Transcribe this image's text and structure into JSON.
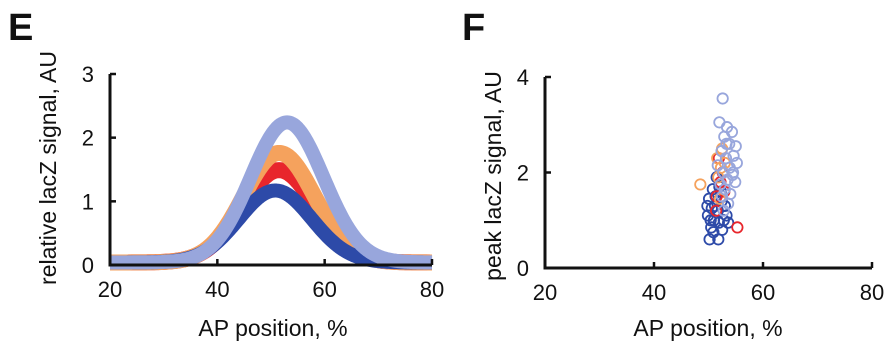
{
  "colors": {
    "red": "#e8262c",
    "orange": "#f5a25d",
    "light_blue": "#98a6dc",
    "dark_blue": "#2d4aa8",
    "axis": "#111111"
  },
  "chart_data": [
    {
      "panel": "E",
      "type": "line",
      "xlabel": "AP position, %",
      "ylabel": "relative lacZ signal, AU",
      "xlim": [
        20,
        80
      ],
      "ylim": [
        0,
        3
      ],
      "xticks": [
        20,
        40,
        60,
        80
      ],
      "yticks": [
        0,
        1,
        2,
        3
      ],
      "grid": false,
      "series": [
        {
          "color": "red",
          "peak": 1.45,
          "center": 51.5,
          "sigma": 6.8,
          "width": 16
        },
        {
          "color": "orange",
          "peak": 1.72,
          "center": 51.5,
          "sigma": 6.6,
          "width": 16
        },
        {
          "color": "dark_blue",
          "peak": 1.13,
          "center": 50.8,
          "sigma": 6.8,
          "width": 14
        },
        {
          "color": "light_blue",
          "peak": 2.2,
          "center": 53.0,
          "sigma": 6.8,
          "width": 14
        }
      ]
    },
    {
      "panel": "F",
      "type": "scatter",
      "xlabel": "AP position, %",
      "ylabel": "peak lacZ signal, AU",
      "xlim": [
        20,
        80
      ],
      "ylim": [
        0,
        4
      ],
      "xticks": [
        20,
        40,
        60,
        80
      ],
      "yticks": [
        0,
        2,
        4
      ],
      "grid": false,
      "series": [
        {
          "color": "dark_blue",
          "points": [
            [
              50.2,
              0.6
            ],
            [
              51.8,
              0.6
            ],
            [
              50.5,
              0.85
            ],
            [
              52.5,
              0.8
            ],
            [
              51.0,
              1.0
            ],
            [
              49.9,
              1.1
            ],
            [
              52.8,
              1.0
            ],
            [
              50.6,
              1.25
            ],
            [
              51.7,
              1.2
            ],
            [
              53.3,
              1.1
            ],
            [
              50.1,
              1.45
            ],
            [
              51.3,
              1.5
            ],
            [
              52.4,
              1.4
            ],
            [
              50.8,
              1.65
            ],
            [
              52.0,
              1.7
            ],
            [
              51.5,
              1.9
            ],
            [
              53.0,
              1.3
            ],
            [
              50.4,
              1.0
            ],
            [
              51.9,
              0.95
            ],
            [
              52.3,
              1.6
            ],
            [
              50.9,
              0.75
            ],
            [
              53.6,
              0.95
            ],
            [
              49.8,
              1.3
            ],
            [
              51.2,
              1.3
            ]
          ]
        },
        {
          "color": "red",
          "points": [
            [
              51.5,
              1.5
            ],
            [
              52.2,
              1.8
            ],
            [
              51.9,
              2.3
            ],
            [
              52.6,
              2.0
            ],
            [
              51.4,
              1.2
            ],
            [
              55.3,
              0.85
            ],
            [
              52.9,
              1.6
            ]
          ]
        },
        {
          "color": "orange",
          "points": [
            [
              48.5,
              1.75
            ],
            [
              51.6,
              2.3
            ],
            [
              52.3,
              2.1
            ],
            [
              52.5,
              2.5
            ],
            [
              51.8,
              1.9
            ],
            [
              53.0,
              2.2
            ],
            [
              52.1,
              1.45
            ]
          ]
        },
        {
          "color": "light_blue",
          "points": [
            [
              52.6,
              3.55
            ],
            [
              52.0,
              3.05
            ],
            [
              53.4,
              2.95
            ],
            [
              54.3,
              2.85
            ],
            [
              52.9,
              2.75
            ],
            [
              53.8,
              2.6
            ],
            [
              55.0,
              2.55
            ],
            [
              52.4,
              2.45
            ],
            [
              54.6,
              2.35
            ],
            [
              53.2,
              2.3
            ],
            [
              55.2,
              2.2
            ],
            [
              53.9,
              2.1
            ],
            [
              52.7,
              2.0
            ],
            [
              54.4,
              1.95
            ],
            [
              53.5,
              1.85
            ],
            [
              54.9,
              1.8
            ],
            [
              52.2,
              1.75
            ],
            [
              53.0,
              1.65
            ],
            [
              54.0,
              1.55
            ],
            [
              52.5,
              1.5
            ],
            [
              53.6,
              1.35
            ],
            [
              52.8,
              1.2
            ],
            [
              54.5,
              2.0
            ],
            [
              51.7,
              2.15
            ],
            [
              53.3,
              2.6
            ]
          ]
        }
      ]
    }
  ]
}
